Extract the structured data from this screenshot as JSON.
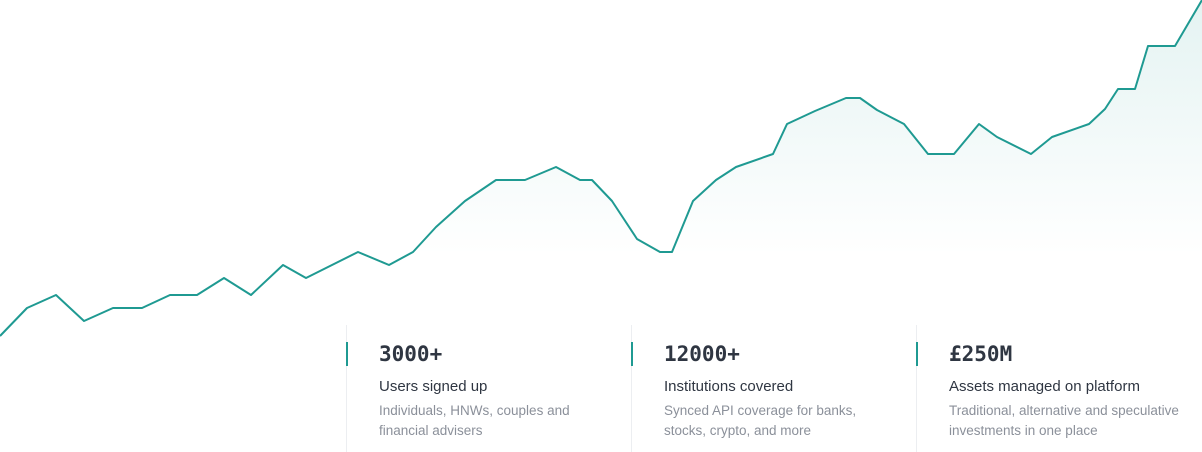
{
  "stats": [
    {
      "value": "3000+",
      "label": "Users signed up",
      "description": [
        "Individuals, HNWs, couples and",
        "financial advisers"
      ]
    },
    {
      "value": "12000+",
      "label": "Institutions covered",
      "description": [
        "Synced API coverage for banks,",
        "stocks, crypto, and more"
      ]
    },
    {
      "value": "£250M",
      "label": "Assets managed on platform",
      "description": [
        "Traditional, alternative and speculative",
        "investments in one place"
      ]
    }
  ]
}
